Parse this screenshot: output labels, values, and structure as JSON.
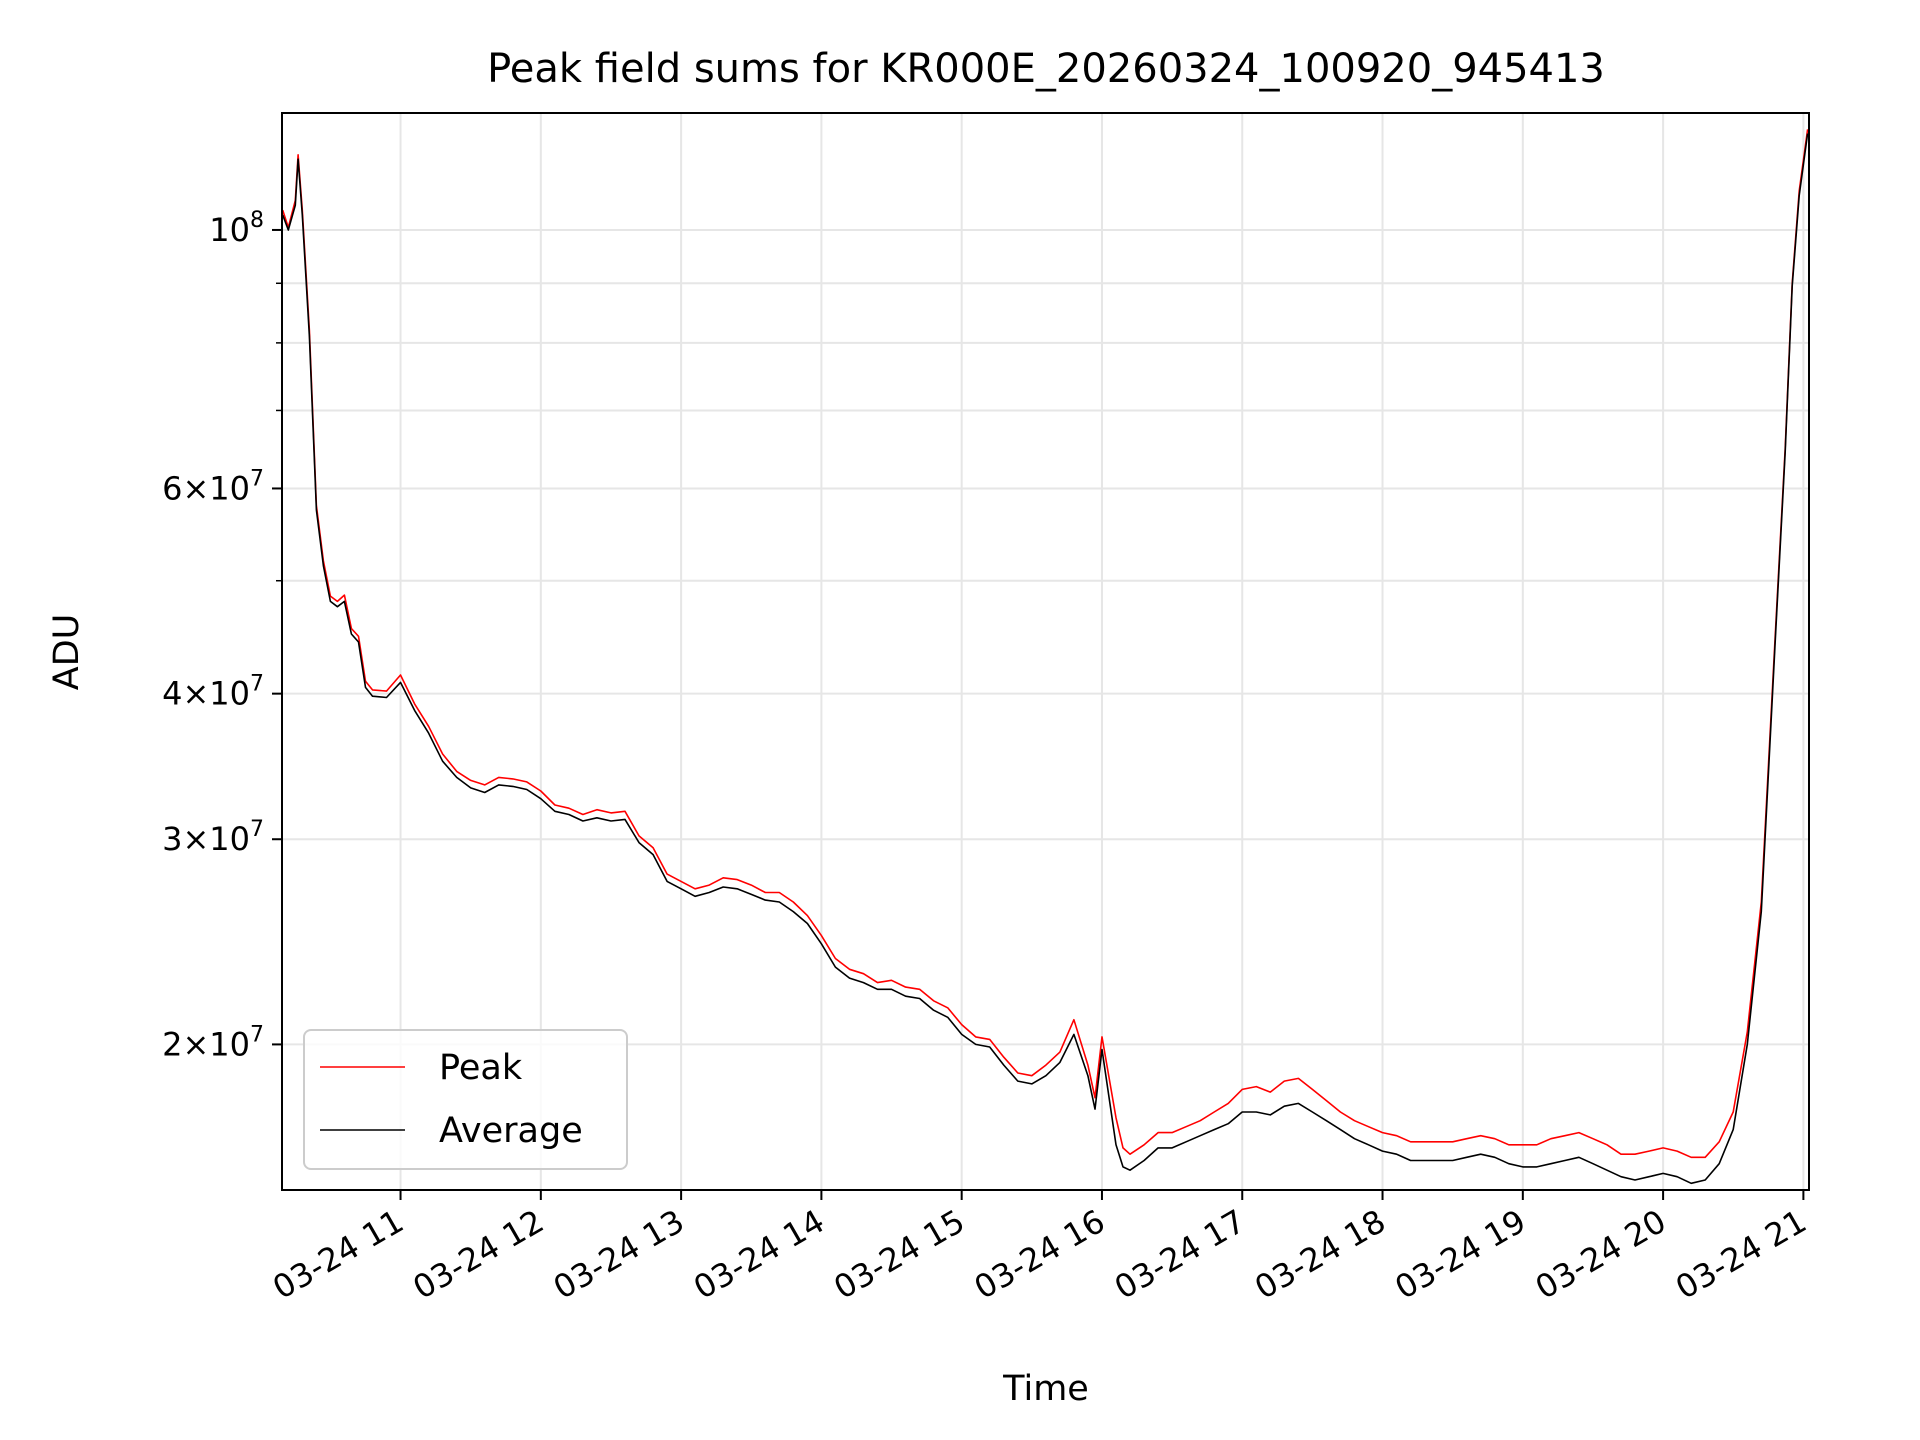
{
  "chart_data": {
    "type": "line",
    "title": "Peak field sums for KR000E_20260324_100920_945413",
    "xlabel": "Time",
    "ylabel": "ADU",
    "yscale": "log",
    "ylim": [
      15000000,
      126000000
    ],
    "xlim": [
      10.155,
      21.04
    ],
    "grid": true,
    "legend_position": "lower-left",
    "x_ticks": [
      {
        "value": 11,
        "label": "03-24 11"
      },
      {
        "value": 12,
        "label": "03-24 12"
      },
      {
        "value": 13,
        "label": "03-24 13"
      },
      {
        "value": 14,
        "label": "03-24 14"
      },
      {
        "value": 15,
        "label": "03-24 15"
      },
      {
        "value": 16,
        "label": "03-24 16"
      },
      {
        "value": 17,
        "label": "03-24 17"
      },
      {
        "value": 18,
        "label": "03-24 18"
      },
      {
        "value": 19,
        "label": "03-24 19"
      },
      {
        "value": 20,
        "label": "03-24 20"
      },
      {
        "value": 21,
        "label": "03-24 21"
      }
    ],
    "y_ticks": [
      {
        "value": 100000000,
        "mantissa": "",
        "exponent": "8"
      },
      {
        "value": 60000000,
        "mantissa": "6",
        "exponent": "7"
      },
      {
        "value": 40000000,
        "mantissa": "4",
        "exponent": "7"
      },
      {
        "value": 30000000,
        "mantissa": "3",
        "exponent": "7"
      },
      {
        "value": 20000000,
        "mantissa": "2",
        "exponent": "7"
      }
    ],
    "y_minor_ticks": [
      70000000,
      80000000,
      90000000,
      50000000
    ],
    "series": [
      {
        "name": "Peak",
        "color": "#ff0000",
        "points": [
          [
            10.16,
            104000000
          ],
          [
            10.2,
            100500000
          ],
          [
            10.25,
            106000000
          ],
          [
            10.27,
            116000000
          ],
          [
            10.3,
            104000000
          ],
          [
            10.35,
            82000000
          ],
          [
            10.4,
            58000000
          ],
          [
            10.45,
            52000000
          ],
          [
            10.5,
            48500000
          ],
          [
            10.55,
            48000000
          ],
          [
            10.6,
            48600000
          ],
          [
            10.65,
            45500000
          ],
          [
            10.7,
            44800000
          ],
          [
            10.75,
            41000000
          ],
          [
            10.8,
            40300000
          ],
          [
            10.9,
            40200000
          ],
          [
            11.0,
            41500000
          ],
          [
            11.1,
            39200000
          ],
          [
            11.2,
            37500000
          ],
          [
            11.3,
            35500000
          ],
          [
            11.4,
            34300000
          ],
          [
            11.5,
            33700000
          ],
          [
            11.6,
            33400000
          ],
          [
            11.7,
            33900000
          ],
          [
            11.8,
            33800000
          ],
          [
            11.9,
            33600000
          ],
          [
            12.0,
            33000000
          ],
          [
            12.1,
            32100000
          ],
          [
            12.2,
            31900000
          ],
          [
            12.3,
            31500000
          ],
          [
            12.4,
            31800000
          ],
          [
            12.5,
            31600000
          ],
          [
            12.6,
            31700000
          ],
          [
            12.7,
            30200000
          ],
          [
            12.8,
            29500000
          ],
          [
            12.9,
            28000000
          ],
          [
            13.0,
            27600000
          ],
          [
            13.1,
            27200000
          ],
          [
            13.2,
            27400000
          ],
          [
            13.3,
            27800000
          ],
          [
            13.4,
            27700000
          ],
          [
            13.5,
            27400000
          ],
          [
            13.6,
            27000000
          ],
          [
            13.7,
            27000000
          ],
          [
            13.8,
            26500000
          ],
          [
            13.9,
            25800000
          ],
          [
            14.0,
            24800000
          ],
          [
            14.1,
            23700000
          ],
          [
            14.2,
            23200000
          ],
          [
            14.3,
            23000000
          ],
          [
            14.4,
            22600000
          ],
          [
            14.5,
            22700000
          ],
          [
            14.6,
            22400000
          ],
          [
            14.7,
            22300000
          ],
          [
            14.8,
            21800000
          ],
          [
            14.9,
            21500000
          ],
          [
            15.0,
            20800000
          ],
          [
            15.1,
            20300000
          ],
          [
            15.2,
            20200000
          ],
          [
            15.3,
            19500000
          ],
          [
            15.4,
            18900000
          ],
          [
            15.5,
            18800000
          ],
          [
            15.6,
            19200000
          ],
          [
            15.7,
            19700000
          ],
          [
            15.8,
            21000000
          ],
          [
            15.9,
            19200000
          ],
          [
            15.95,
            18000000
          ],
          [
            16.0,
            20300000
          ],
          [
            16.1,
            17300000
          ],
          [
            16.15,
            16300000
          ],
          [
            16.2,
            16100000
          ],
          [
            16.3,
            16400000
          ],
          [
            16.4,
            16800000
          ],
          [
            16.5,
            16800000
          ],
          [
            16.6,
            17000000
          ],
          [
            16.7,
            17200000
          ],
          [
            16.8,
            17500000
          ],
          [
            16.9,
            17800000
          ],
          [
            17.0,
            18300000
          ],
          [
            17.1,
            18400000
          ],
          [
            17.2,
            18200000
          ],
          [
            17.3,
            18600000
          ],
          [
            17.4,
            18700000
          ],
          [
            17.5,
            18300000
          ],
          [
            17.6,
            17900000
          ],
          [
            17.7,
            17500000
          ],
          [
            17.8,
            17200000
          ],
          [
            17.9,
            17000000
          ],
          [
            18.0,
            16800000
          ],
          [
            18.1,
            16700000
          ],
          [
            18.2,
            16500000
          ],
          [
            18.3,
            16500000
          ],
          [
            18.4,
            16500000
          ],
          [
            18.5,
            16500000
          ],
          [
            18.6,
            16600000
          ],
          [
            18.7,
            16700000
          ],
          [
            18.8,
            16600000
          ],
          [
            18.9,
            16400000
          ],
          [
            19.0,
            16400000
          ],
          [
            19.1,
            16400000
          ],
          [
            19.2,
            16600000
          ],
          [
            19.3,
            16700000
          ],
          [
            19.4,
            16800000
          ],
          [
            19.5,
            16600000
          ],
          [
            19.6,
            16400000
          ],
          [
            19.7,
            16100000
          ],
          [
            19.8,
            16100000
          ],
          [
            19.9,
            16200000
          ],
          [
            20.0,
            16300000
          ],
          [
            20.1,
            16200000
          ],
          [
            20.2,
            16000000
          ],
          [
            20.3,
            16000000
          ],
          [
            20.4,
            16500000
          ],
          [
            20.5,
            17500000
          ],
          [
            20.6,
            20500000
          ],
          [
            20.7,
            26500000
          ],
          [
            20.8,
            45000000
          ],
          [
            20.87,
            65000000
          ],
          [
            20.92,
            90000000
          ],
          [
            20.97,
            108000000
          ],
          [
            21.03,
            122000000
          ]
        ]
      },
      {
        "name": "Average",
        "color": "#000000",
        "points": [
          [
            10.16,
            103000000
          ],
          [
            10.2,
            100000000
          ],
          [
            10.25,
            105000000
          ],
          [
            10.27,
            115000000
          ],
          [
            10.3,
            103000000
          ],
          [
            10.35,
            81000000
          ],
          [
            10.4,
            57500000
          ],
          [
            10.45,
            51500000
          ],
          [
            10.5,
            48000000
          ],
          [
            10.55,
            47500000
          ],
          [
            10.6,
            48000000
          ],
          [
            10.65,
            45000000
          ],
          [
            10.7,
            44300000
          ],
          [
            10.75,
            40500000
          ],
          [
            10.8,
            39800000
          ],
          [
            10.9,
            39700000
          ],
          [
            11.0,
            40900000
          ],
          [
            11.1,
            38700000
          ],
          [
            11.2,
            37000000
          ],
          [
            11.3,
            35000000
          ],
          [
            11.4,
            33900000
          ],
          [
            11.5,
            33200000
          ],
          [
            11.6,
            32900000
          ],
          [
            11.7,
            33400000
          ],
          [
            11.8,
            33300000
          ],
          [
            11.9,
            33100000
          ],
          [
            12.0,
            32500000
          ],
          [
            12.1,
            31700000
          ],
          [
            12.2,
            31500000
          ],
          [
            12.3,
            31100000
          ],
          [
            12.4,
            31300000
          ],
          [
            12.5,
            31100000
          ],
          [
            12.6,
            31200000
          ],
          [
            12.7,
            29800000
          ],
          [
            12.8,
            29100000
          ],
          [
            12.9,
            27600000
          ],
          [
            13.0,
            27200000
          ],
          [
            13.1,
            26800000
          ],
          [
            13.2,
            27000000
          ],
          [
            13.3,
            27300000
          ],
          [
            13.4,
            27200000
          ],
          [
            13.5,
            26900000
          ],
          [
            13.6,
            26600000
          ],
          [
            13.7,
            26500000
          ],
          [
            13.8,
            26000000
          ],
          [
            13.9,
            25400000
          ],
          [
            14.0,
            24400000
          ],
          [
            14.1,
            23300000
          ],
          [
            14.2,
            22800000
          ],
          [
            14.3,
            22600000
          ],
          [
            14.4,
            22300000
          ],
          [
            14.5,
            22300000
          ],
          [
            14.6,
            22000000
          ],
          [
            14.7,
            21900000
          ],
          [
            14.8,
            21400000
          ],
          [
            14.9,
            21100000
          ],
          [
            15.0,
            20400000
          ],
          [
            15.1,
            20000000
          ],
          [
            15.2,
            19900000
          ],
          [
            15.3,
            19200000
          ],
          [
            15.4,
            18600000
          ],
          [
            15.5,
            18500000
          ],
          [
            15.6,
            18800000
          ],
          [
            15.7,
            19300000
          ],
          [
            15.8,
            20400000
          ],
          [
            15.9,
            18800000
          ],
          [
            15.95,
            17600000
          ],
          [
            16.0,
            19800000
          ],
          [
            16.1,
            16400000
          ],
          [
            16.15,
            15700000
          ],
          [
            16.2,
            15600000
          ],
          [
            16.3,
            15900000
          ],
          [
            16.4,
            16300000
          ],
          [
            16.5,
            16300000
          ],
          [
            16.6,
            16500000
          ],
          [
            16.7,
            16700000
          ],
          [
            16.8,
            16900000
          ],
          [
            16.9,
            17100000
          ],
          [
            17.0,
            17500000
          ],
          [
            17.1,
            17500000
          ],
          [
            17.2,
            17400000
          ],
          [
            17.3,
            17700000
          ],
          [
            17.4,
            17800000
          ],
          [
            17.5,
            17500000
          ],
          [
            17.6,
            17200000
          ],
          [
            17.7,
            16900000
          ],
          [
            17.8,
            16600000
          ],
          [
            17.9,
            16400000
          ],
          [
            18.0,
            16200000
          ],
          [
            18.1,
            16100000
          ],
          [
            18.2,
            15900000
          ],
          [
            18.3,
            15900000
          ],
          [
            18.4,
            15900000
          ],
          [
            18.5,
            15900000
          ],
          [
            18.6,
            16000000
          ],
          [
            18.7,
            16100000
          ],
          [
            18.8,
            16000000
          ],
          [
            18.9,
            15800000
          ],
          [
            19.0,
            15700000
          ],
          [
            19.1,
            15700000
          ],
          [
            19.2,
            15800000
          ],
          [
            19.3,
            15900000
          ],
          [
            19.4,
            16000000
          ],
          [
            19.5,
            15800000
          ],
          [
            19.6,
            15600000
          ],
          [
            19.7,
            15400000
          ],
          [
            19.8,
            15300000
          ],
          [
            19.9,
            15400000
          ],
          [
            20.0,
            15500000
          ],
          [
            20.1,
            15400000
          ],
          [
            20.2,
            15200000
          ],
          [
            20.3,
            15300000
          ],
          [
            20.4,
            15800000
          ],
          [
            20.5,
            16900000
          ],
          [
            20.6,
            20000000
          ],
          [
            20.7,
            26000000
          ],
          [
            20.8,
            44500000
          ],
          [
            20.87,
            64500000
          ],
          [
            20.92,
            89500000
          ],
          [
            20.97,
            107000000
          ],
          [
            21.03,
            121000000
          ]
        ]
      }
    ]
  }
}
